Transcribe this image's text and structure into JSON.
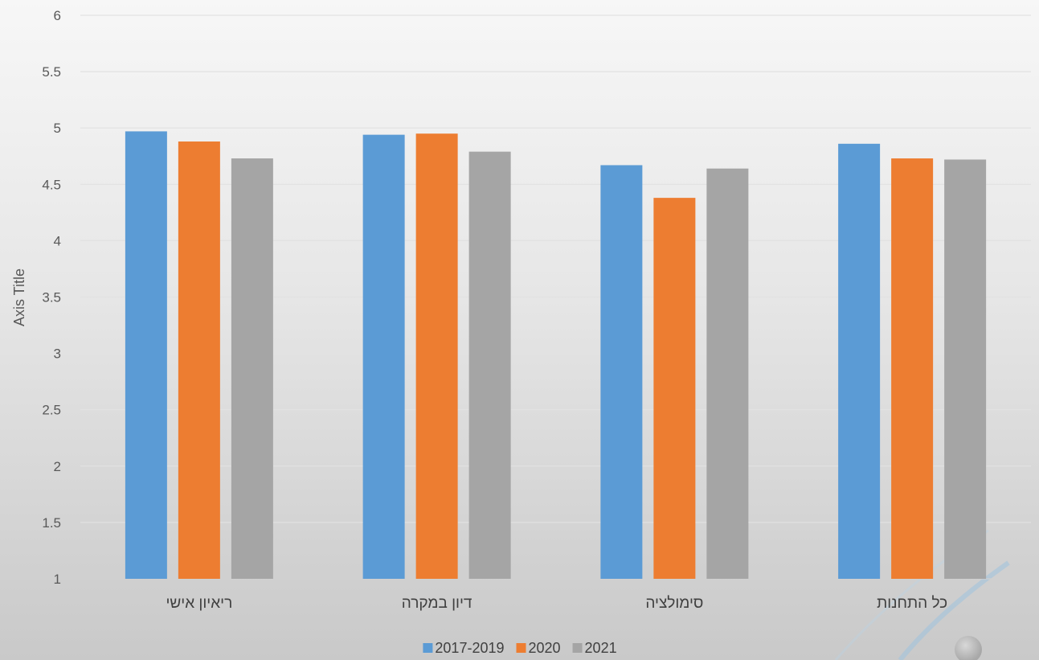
{
  "chart_data": {
    "type": "bar",
    "categories": [
      "ריאיון אישי",
      "דיון במקרה",
      "סימולציה",
      "כל התחנות"
    ],
    "series": [
      {
        "name": "2017-2019",
        "color": "#5b9bd5",
        "values": [
          4.97,
          4.94,
          4.67,
          4.86
        ]
      },
      {
        "name": "2020",
        "color": "#ed7d31",
        "values": [
          4.88,
          4.95,
          4.38,
          4.73
        ]
      },
      {
        "name": "2021",
        "color": "#a5a5a5",
        "values": [
          4.73,
          4.79,
          4.64,
          4.72
        ]
      }
    ],
    "title": "",
    "xlabel": "",
    "ylabel": "Axis Title",
    "ylim": [
      1,
      6
    ],
    "yticks": [
      "1",
      "1.5",
      "2",
      "2.5",
      "3",
      "3.5",
      "4",
      "4.5",
      "5",
      "5.5",
      "6"
    ],
    "grid": true,
    "legend": "bottom"
  }
}
